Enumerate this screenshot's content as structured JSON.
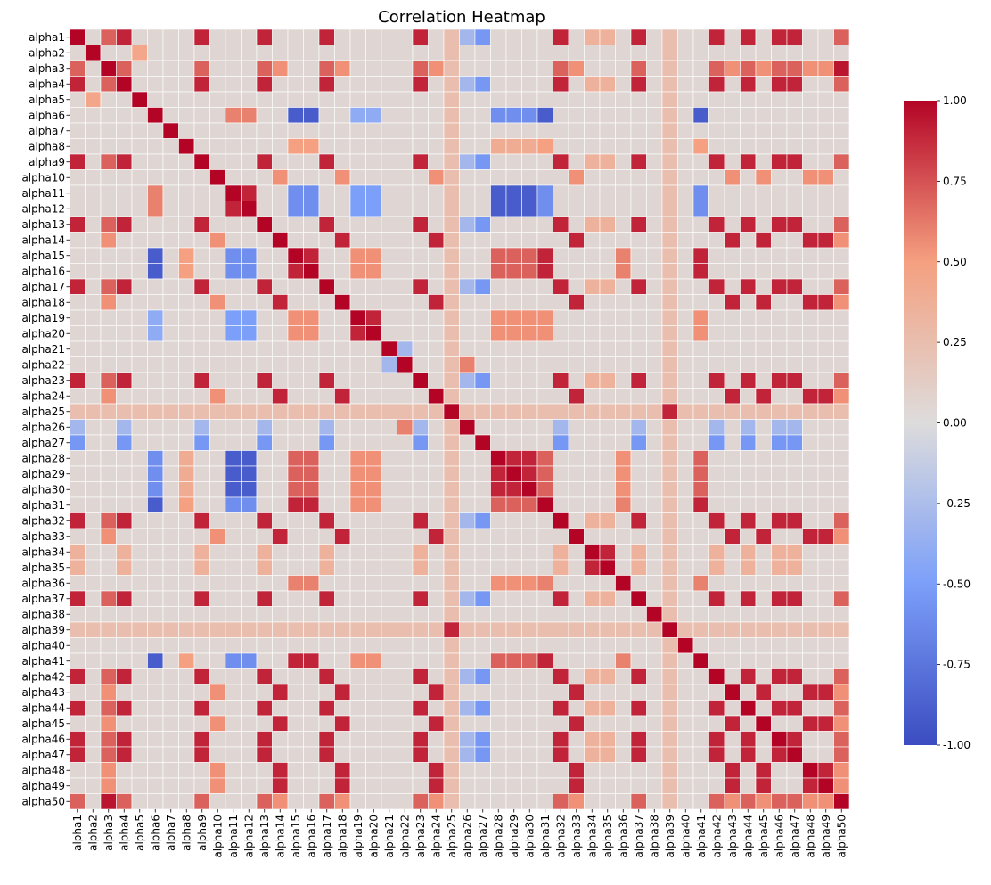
{
  "chart_data": {
    "type": "heatmap",
    "title": "Correlation Heatmap",
    "labels": [
      "alpha1",
      "alpha2",
      "alpha3",
      "alpha4",
      "alpha5",
      "alpha6",
      "alpha7",
      "alpha8",
      "alpha9",
      "alpha10",
      "alpha11",
      "alpha12",
      "alpha13",
      "alpha14",
      "alpha15",
      "alpha16",
      "alpha17",
      "alpha18",
      "alpha19",
      "alpha20",
      "alpha21",
      "alpha22",
      "alpha23",
      "alpha24",
      "alpha25",
      "alpha26",
      "alpha27",
      "alpha28",
      "alpha29",
      "alpha30",
      "alpha31",
      "alpha32",
      "alpha33",
      "alpha34",
      "alpha35",
      "alpha36",
      "alpha37",
      "alpha38",
      "alpha39",
      "alpha40",
      "alpha41",
      "alpha42",
      "alpha43",
      "alpha44",
      "alpha45",
      "alpha46",
      "alpha47",
      "alpha48",
      "alpha49",
      "alpha50"
    ],
    "vmin": -1.0,
    "vmax": 1.0,
    "colormap": "coolwarm",
    "colorbar_ticks": [
      "1.00",
      "0.75",
      "0.50",
      "0.25",
      "0.00",
      "-0.25",
      "-0.50",
      "-0.75",
      "-1.00"
    ],
    "groups": {
      "A": [
        1,
        4,
        9,
        13,
        17,
        23,
        32,
        37,
        42,
        44,
        46,
        47
      ],
      "B": [
        14,
        18,
        24,
        33,
        43,
        45,
        48,
        49
      ],
      "C": [
        15,
        16,
        31,
        41
      ],
      "D": [
        28,
        29,
        30
      ],
      "E": [
        19,
        20
      ],
      "F": [
        11,
        12
      ],
      "G": [
        34,
        35
      ],
      "H": [
        25,
        39
      ]
    },
    "group_values": {
      "same": 0.9,
      "A_3": 0.7,
      "B_3": 0.55,
      "A_27": -0.55,
      "A_26": -0.3,
      "C_D": 0.7,
      "C_E": 0.55,
      "D_E": 0.55,
      "F_D": -0.9,
      "F_C": -0.6,
      "F_E": -0.5,
      "6_C": -0.9,
      "6_D": -0.6,
      "6_F": 0.6,
      "6_E": -0.4,
      "10_B": 0.55,
      "A_G": 0.35,
      "H_misc": 0.25,
      "36_C": 0.6,
      "36_D": 0.55,
      "8_C": 0.5,
      "8_D": 0.4,
      "2_5": 0.45,
      "21_22": -0.3,
      "22_26": 0.6,
      "3_50": 0.95,
      "3_A_B": 0.6,
      "background": 0.05
    },
    "diagonal": 1.0
  }
}
